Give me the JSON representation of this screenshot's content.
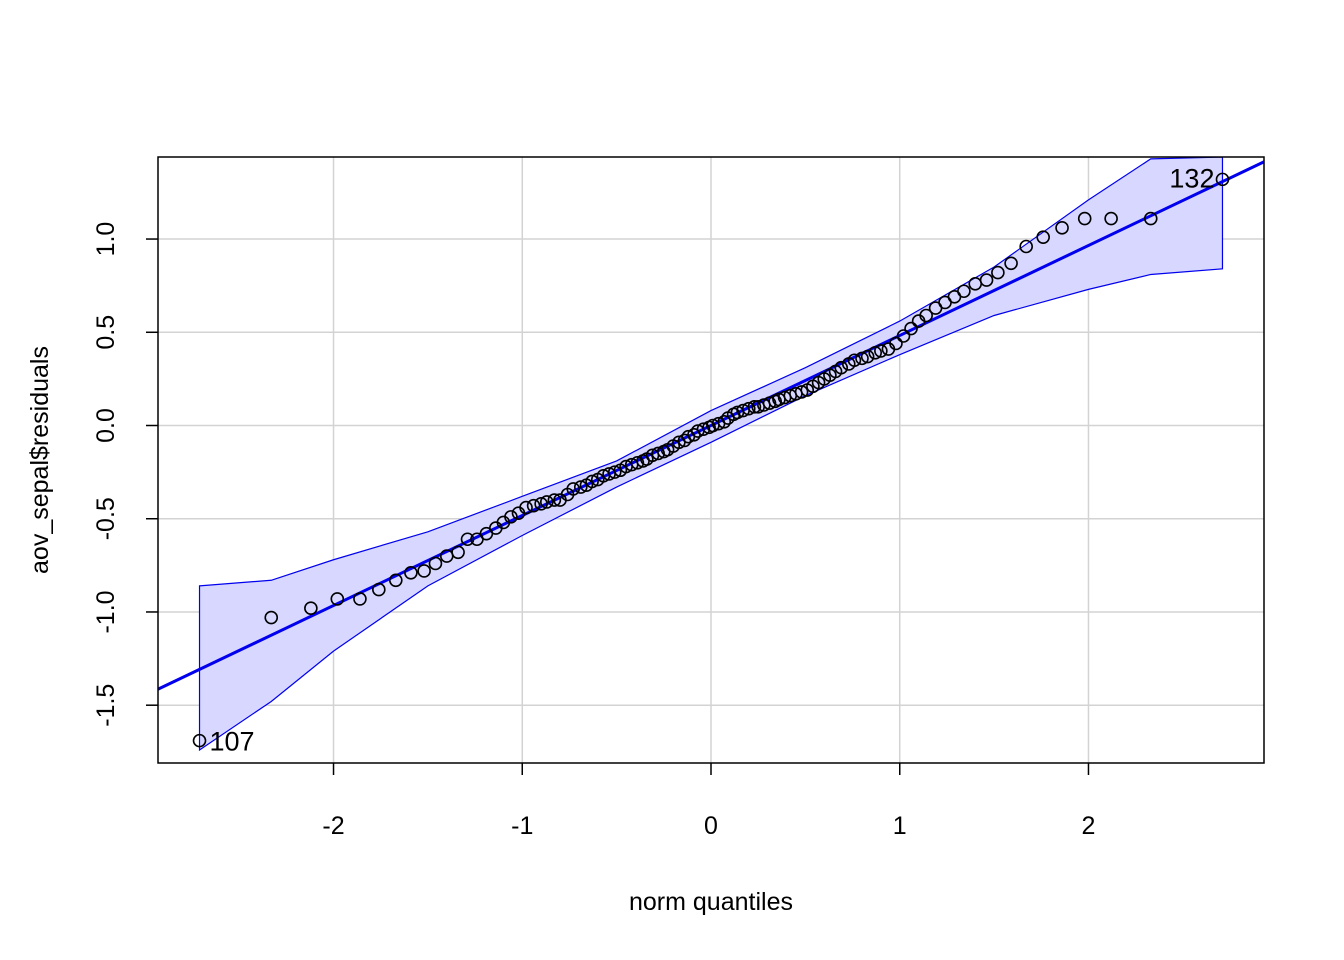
{
  "chart_data": {
    "type": "scatter",
    "title": "",
    "xlabel": "norm quantiles",
    "ylabel": "aov_sepal$residuals",
    "xlim": [
      -2.93,
      2.93
    ],
    "ylim": [
      -1.81,
      1.44
    ],
    "x_ticks": [
      -2,
      -1,
      0,
      1,
      2
    ],
    "x_tick_labels": [
      "-2",
      "-1",
      "0",
      "1",
      "2"
    ],
    "y_ticks": [
      -1.5,
      -1.0,
      -0.5,
      0.0,
      0.5,
      1.0
    ],
    "y_tick_labels": [
      "-1.5",
      "-1.0",
      "-0.5",
      "0.0",
      "0.5",
      "1.0"
    ],
    "grid": true,
    "colors": {
      "line": "#0000ee",
      "band_fill": "#d7d7ff",
      "points": "#000000",
      "grid": "#d3d3d3"
    },
    "reference_line": {
      "intercept": 0.0,
      "slope": 0.4827
    },
    "confidence_band": {
      "x": [
        -2.71,
        -2.33,
        -2.0,
        -1.5,
        -1.0,
        -0.5,
        0.0,
        0.5,
        1.0,
        1.5,
        2.0,
        2.33,
        2.71
      ],
      "upper": [
        -0.86,
        -0.83,
        -0.72,
        -0.57,
        -0.38,
        -0.19,
        0.08,
        0.31,
        0.56,
        0.85,
        1.21,
        1.43,
        1.44
      ],
      "lower": [
        -1.74,
        -1.48,
        -1.21,
        -0.86,
        -0.59,
        -0.33,
        -0.09,
        0.16,
        0.38,
        0.59,
        0.73,
        0.81,
        0.84
      ]
    },
    "series": [
      {
        "x": [
          -2.71,
          -2.33,
          -2.12,
          -1.98,
          -1.86,
          -1.76,
          -1.67,
          -1.59,
          -1.52,
          -1.46,
          -1.4,
          -1.34,
          -1.29,
          -1.24,
          -1.19,
          -1.14,
          -1.1,
          -1.06,
          -1.02,
          -0.98,
          -0.94,
          -0.9,
          -0.87,
          -0.83,
          -0.8,
          -0.76,
          -0.73,
          -0.69,
          -0.66,
          -0.63,
          -0.6,
          -0.57,
          -0.54,
          -0.51,
          -0.48,
          -0.45,
          -0.42,
          -0.39,
          -0.36,
          -0.34,
          -0.31,
          -0.28,
          -0.25,
          -0.23,
          -0.2,
          -0.17,
          -0.14,
          -0.12,
          -0.09,
          -0.07,
          -0.04,
          -0.01,
          0.01,
          0.04,
          0.07,
          0.09,
          0.12,
          0.14,
          0.17,
          0.2,
          0.23,
          0.25,
          0.28,
          0.31,
          0.34,
          0.36,
          0.39,
          0.42,
          0.45,
          0.48,
          0.51,
          0.54,
          0.57,
          0.6,
          0.63,
          0.66,
          0.69,
          0.73,
          0.76,
          0.8,
          0.83,
          0.87,
          0.9,
          0.94,
          0.98,
          1.02,
          1.06,
          1.1,
          1.14,
          1.19,
          1.24,
          1.29,
          1.34,
          1.4,
          1.46,
          1.52,
          1.59,
          1.67,
          1.76,
          1.86,
          1.98,
          2.12,
          2.33,
          2.71
        ],
        "y": [
          -1.69,
          -1.03,
          -0.98,
          -0.93,
          -0.93,
          -0.88,
          -0.83,
          -0.79,
          -0.78,
          -0.74,
          -0.7,
          -0.68,
          -0.61,
          -0.61,
          -0.58,
          -0.55,
          -0.52,
          -0.49,
          -0.47,
          -0.44,
          -0.43,
          -0.42,
          -0.41,
          -0.4,
          -0.4,
          -0.37,
          -0.34,
          -0.33,
          -0.32,
          -0.3,
          -0.29,
          -0.27,
          -0.26,
          -0.25,
          -0.24,
          -0.22,
          -0.21,
          -0.2,
          -0.19,
          -0.18,
          -0.16,
          -0.15,
          -0.14,
          -0.13,
          -0.11,
          -0.09,
          -0.08,
          -0.06,
          -0.05,
          -0.03,
          -0.02,
          -0.01,
          0.0,
          0.01,
          0.02,
          0.04,
          0.06,
          0.07,
          0.08,
          0.09,
          0.1,
          0.1,
          0.11,
          0.12,
          0.13,
          0.14,
          0.15,
          0.16,
          0.17,
          0.18,
          0.19,
          0.21,
          0.23,
          0.25,
          0.27,
          0.29,
          0.31,
          0.33,
          0.35,
          0.36,
          0.37,
          0.39,
          0.4,
          0.41,
          0.44,
          0.48,
          0.52,
          0.56,
          0.59,
          0.63,
          0.66,
          0.69,
          0.72,
          0.76,
          0.78,
          0.82,
          0.87,
          0.96,
          1.01,
          1.06,
          1.11,
          1.11,
          1.11,
          1.32
        ]
      }
    ],
    "annotations": [
      {
        "text": "107",
        "x": -2.71,
        "y": -1.69
      },
      {
        "text": "132",
        "x": 2.71,
        "y": 1.32
      }
    ]
  }
}
